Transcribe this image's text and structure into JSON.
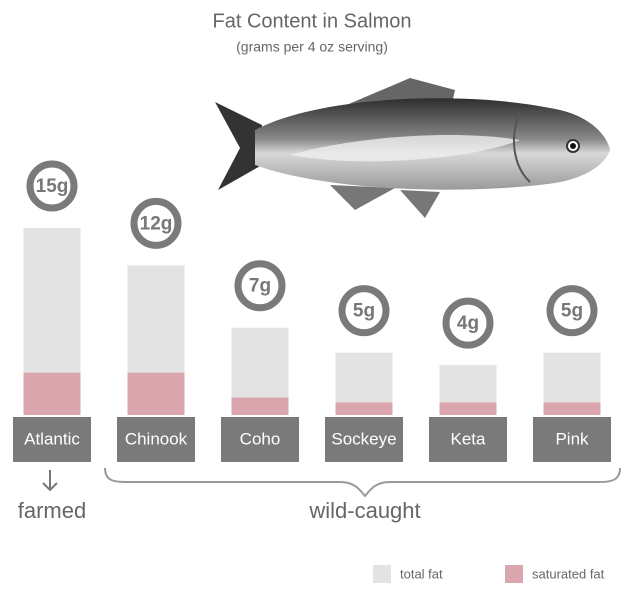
{
  "chart_data": {
    "type": "bar",
    "title": "Fat Content in Salmon",
    "subtitle": "(grams per 4 oz serving)",
    "categories": [
      "Atlantic",
      "Chinook",
      "Coho",
      "Sockeye",
      "Keta",
      "Pink"
    ],
    "series": [
      {
        "name": "total fat",
        "color": "#e3e3e3",
        "values": [
          15,
          12,
          7,
          5,
          4,
          5
        ],
        "value_labels": [
          "15g",
          "12g",
          "7g",
          "5g",
          "4g",
          "5g"
        ]
      },
      {
        "name": "saturated fat",
        "color": "#d9a6ad",
        "values": [
          3.4,
          3.4,
          1.4,
          1,
          1,
          1
        ]
      }
    ],
    "annotations": [
      "farmed",
      "wild-caught"
    ]
  }
}
